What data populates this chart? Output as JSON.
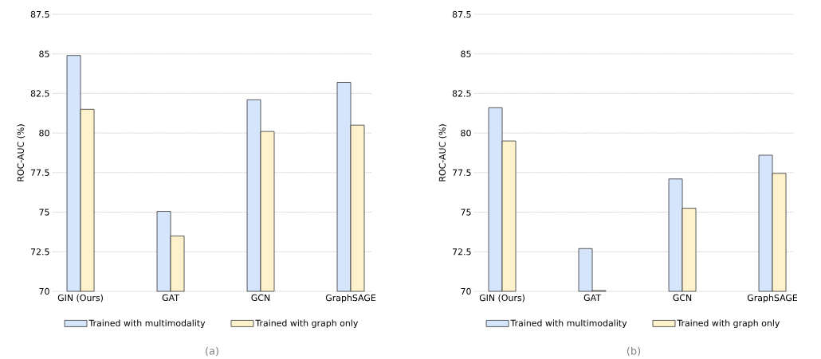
{
  "chart_data": [
    {
      "type": "bar",
      "categories": [
        "GIN (Ours)",
        "GAT",
        "GCN",
        "GraphSAGE"
      ],
      "ylabel": "ROC-AUC (%)",
      "ylim": [
        70,
        87.5
      ],
      "yticks": [
        70,
        72.5,
        75,
        77.5,
        80,
        82.5,
        85,
        87.5
      ],
      "grid": "y",
      "legend": "bottom",
      "annotations": [
        "(a)"
      ],
      "series": [
        {
          "name": "Trained with multimodality",
          "color": "#d4e5fc",
          "values": [
            84.9,
            75.05,
            82.1,
            83.2
          ]
        },
        {
          "name": "Trained with graph only",
          "color": "#fef2cc",
          "values": [
            81.5,
            73.5,
            80.1,
            80.5
          ]
        }
      ]
    },
    {
      "type": "bar",
      "categories": [
        "GIN (Ours)",
        "GAT",
        "GCN",
        "GraphSAGE"
      ],
      "ylabel": "ROC-AUC (%)",
      "ylim": [
        70,
        87.5
      ],
      "yticks": [
        70,
        72.5,
        75,
        77.5,
        80,
        82.5,
        85,
        87.5
      ],
      "grid": "y",
      "legend": "bottom",
      "annotations": [
        "(b)"
      ],
      "series": [
        {
          "name": "Trained with multimodality",
          "color": "#d4e5fc",
          "values": [
            81.6,
            72.7,
            77.1,
            78.6
          ]
        },
        {
          "name": "Trained with graph only",
          "color": "#fef2cc",
          "values": [
            79.5,
            70.05,
            75.25,
            77.45
          ]
        }
      ]
    }
  ]
}
